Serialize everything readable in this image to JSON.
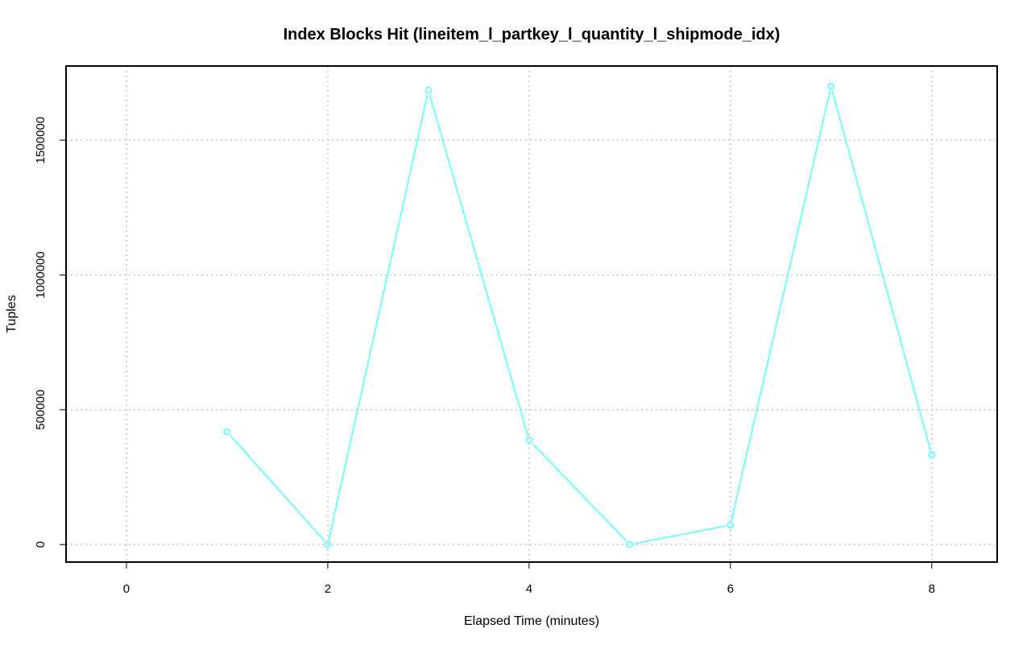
{
  "chart_data": {
    "type": "line",
    "title": "Index Blocks Hit (lineitem_l_partkey_l_quantity_l_shipmode_idx)",
    "xlabel": "Elapsed Time (minutes)",
    "ylabel": "Tuples",
    "xlim": [
      -0.6,
      8.65
    ],
    "ylim": [
      -65000,
      1775000
    ],
    "x_ticks": [
      0,
      2,
      4,
      6,
      8
    ],
    "x_tick_labels": [
      "0",
      "2",
      "4",
      "6",
      "8"
    ],
    "y_ticks": [
      0,
      500000,
      1000000,
      1500000
    ],
    "y_tick_labels": [
      "0",
      "500000",
      "1000000",
      "1500000"
    ],
    "grid": true,
    "legend": "none",
    "series": [
      {
        "color": "#66ffff",
        "x": [
          1,
          2,
          3,
          4,
          5,
          6,
          7,
          8
        ],
        "y": [
          418000,
          0,
          1685000,
          388000,
          0,
          72000,
          1700000,
          333000
        ]
      }
    ]
  }
}
